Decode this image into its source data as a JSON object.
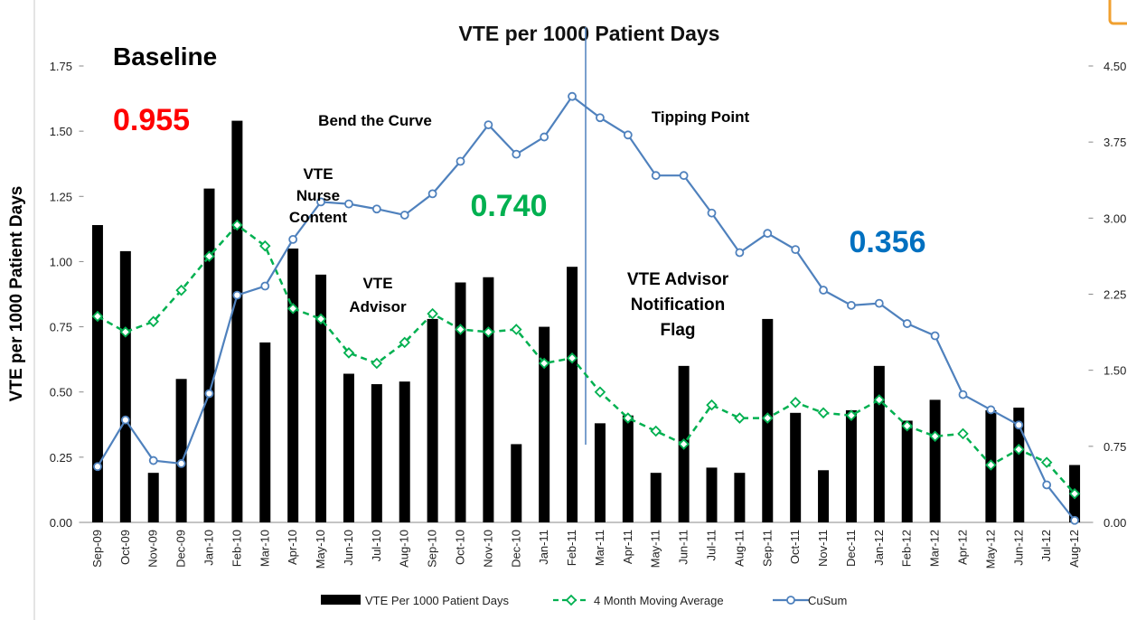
{
  "chart_data": {
    "type": "bar_line",
    "title": "VTE per 1000 Patient Days",
    "ylabel": "VTE per 1000 Patient Days",
    "categories": [
      "Sep-09",
      "Oct-09",
      "Nov-09",
      "Dec-09",
      "Jan-10",
      "Feb-10",
      "Mar-10",
      "Apr-10",
      "May-10",
      "Jun-10",
      "Jul-10",
      "Aug-10",
      "Sep-10",
      "Oct-10",
      "Nov-10",
      "Dec-10",
      "Jan-11",
      "Feb-11",
      "Mar-11",
      "Apr-11",
      "May-11",
      "Jun-11",
      "Jul-11",
      "Aug-11",
      "Sep-11",
      "Oct-11",
      "Nov-11",
      "Dec-11",
      "Jan-12",
      "Feb-12",
      "Mar-12",
      "Apr-12",
      "May-12",
      "Jun-12",
      "Jul-12",
      "Aug-12"
    ],
    "series": [
      {
        "name": "VTE Per 1000 Patient Days",
        "kind": "bar",
        "color": "#000000",
        "values": [
          1.14,
          1.04,
          0.19,
          0.55,
          1.28,
          1.54,
          0.69,
          1.05,
          0.95,
          0.57,
          0.53,
          0.54,
          0.78,
          0.92,
          0.94,
          0.3,
          0.75,
          0.98,
          0.38,
          0.41,
          0.19,
          0.6,
          0.21,
          0.19,
          0.78,
          0.42,
          0.2,
          0.43,
          0.6,
          0.39,
          0.47,
          0,
          0.43,
          0.44,
          0,
          0.22
        ]
      },
      {
        "name": "4 Month Moving Average",
        "kind": "line",
        "dashed": true,
        "marker": "diamond",
        "color": "#00b050",
        "values": [
          0.79,
          0.73,
          0.77,
          0.89,
          1.02,
          1.14,
          1.06,
          0.82,
          0.78,
          0.65,
          0.61,
          0.69,
          0.8,
          0.74,
          0.73,
          0.74,
          0.61,
          0.63,
          0.5,
          0.4,
          0.35,
          0.3,
          0.45,
          0.4,
          0.4,
          0.46,
          0.42,
          0.41,
          0.47,
          0.37,
          0.33,
          0.34,
          0.22,
          0.28,
          0.23,
          0.11
        ]
      },
      {
        "name": "CuSum",
        "kind": "line",
        "marker": "circle",
        "axis": "y2",
        "color": "#4f81bd",
        "values": [
          0.55,
          1.01,
          0.61,
          0.58,
          1.27,
          2.24,
          2.33,
          2.79,
          3.16,
          3.14,
          3.09,
          3.03,
          3.24,
          3.56,
          3.92,
          3.63,
          3.8,
          4.2,
          3.99,
          3.82,
          3.42,
          3.42,
          3.05,
          2.66,
          2.85,
          2.69,
          2.29,
          2.14,
          2.16,
          1.96,
          1.84,
          1.26,
          1.11,
          0.96,
          0.37,
          0.02
        ]
      }
    ],
    "ylim": [
      0,
      1.75
    ],
    "yticks": [
      {
        "value": 0,
        "label": "0.00"
      },
      {
        "value": 0.25,
        "label": "0.25"
      },
      {
        "value": 0.5,
        "label": "0.50"
      },
      {
        "value": 0.75,
        "label": "0.75"
      },
      {
        "value": 1,
        "label": "1.00"
      },
      {
        "value": 1.25,
        "label": "1.25"
      },
      {
        "value": 1.5,
        "label": "1.50"
      },
      {
        "value": 1.75,
        "label": "1.75"
      }
    ],
    "y2lim": [
      0,
      4.5
    ],
    "y2ticks": [
      {
        "value": 0,
        "label": "0.00"
      },
      {
        "value": 0.75,
        "label": "0.75"
      },
      {
        "value": 1.5,
        "label": "1.50"
      },
      {
        "value": 2.25,
        "label": "2.25"
      },
      {
        "value": 3,
        "label": "3.00"
      },
      {
        "value": 3.75,
        "label": "3.75"
      },
      {
        "value": 4.5,
        "label": "4.50"
      }
    ],
    "legend": "bottom",
    "annotations": [
      {
        "lines": [
          "Baseline"
        ],
        "color": "#000000"
      },
      {
        "lines": [
          "0.955"
        ],
        "color": "#ff0000"
      },
      {
        "lines": [
          "Bend the Curve"
        ],
        "color": "#000000"
      },
      {
        "lines": [
          "VTE",
          "Nurse",
          "Content"
        ],
        "color": "#000000"
      },
      {
        "lines": [
          "0.740"
        ],
        "color": "#00b050"
      },
      {
        "lines": [
          "VTE",
          "Advisor"
        ],
        "color": "#000000"
      },
      {
        "lines": [
          "Tipping Point"
        ],
        "color": "#000000"
      },
      {
        "lines": [
          "VTE Advisor",
          "Notification",
          "Flag"
        ],
        "color": "#000000"
      },
      {
        "lines": [
          "0.356"
        ],
        "color": "#0070c0"
      }
    ]
  }
}
